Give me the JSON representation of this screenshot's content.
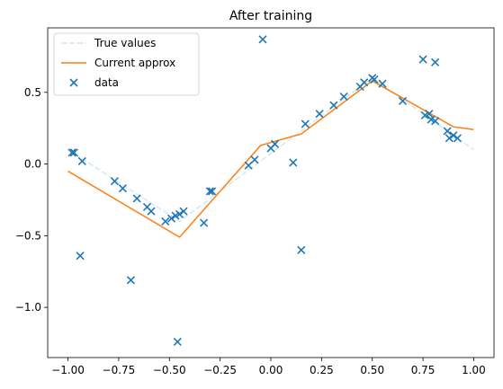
{
  "chart_data": {
    "type": "line",
    "title": "After training",
    "xlabel": "",
    "ylabel": "",
    "xlim": [
      -1.1,
      1.1
    ],
    "ylim": [
      -1.35,
      0.95
    ],
    "xticks": [
      -1.0,
      -0.75,
      -0.5,
      -0.25,
      0.0,
      0.25,
      0.5,
      0.75,
      1.0
    ],
    "xtick_labels": [
      "−1.00",
      "−0.75",
      "−0.50",
      "−0.25",
      "0.00",
      "0.25",
      "0.50",
      "0.75",
      "1.00"
    ],
    "yticks": [
      -1.0,
      -0.5,
      0.0,
      0.5
    ],
    "ytick_labels": [
      "−1.0",
      "−0.5",
      "0.0",
      "0.5"
    ],
    "grid": false,
    "legend": {
      "placement": "top-left",
      "entries": [
        "True values",
        "Current approx",
        "data"
      ]
    },
    "series": [
      {
        "name": "True values",
        "kind": "line",
        "style": "dashed",
        "color": "#add8e6",
        "points": [
          [
            -1.0,
            0.1
          ],
          [
            -0.45,
            -0.4
          ],
          [
            0.5,
            0.6
          ],
          [
            1.0,
            0.1
          ]
        ]
      },
      {
        "name": "Current approx",
        "kind": "line",
        "style": "solid",
        "color": "#ff7f0e",
        "points": [
          [
            -1.0,
            -0.05
          ],
          [
            -0.45,
            -0.51
          ],
          [
            -0.05,
            0.13
          ],
          [
            0.15,
            0.21
          ],
          [
            0.5,
            0.58
          ],
          [
            0.9,
            0.26
          ],
          [
            1.0,
            0.24
          ]
        ]
      },
      {
        "name": "data",
        "kind": "scatter",
        "marker": "x",
        "color": "#1f77b4",
        "points": [
          [
            -0.98,
            0.08
          ],
          [
            -0.97,
            0.08
          ],
          [
            -0.94,
            -0.64
          ],
          [
            -0.93,
            0.02
          ],
          [
            -0.77,
            -0.12
          ],
          [
            -0.73,
            -0.17
          ],
          [
            -0.69,
            -0.81
          ],
          [
            -0.66,
            -0.24
          ],
          [
            -0.61,
            -0.3
          ],
          [
            -0.59,
            -0.33
          ],
          [
            -0.52,
            -0.4
          ],
          [
            -0.49,
            -0.38
          ],
          [
            -0.47,
            -0.36
          ],
          [
            -0.46,
            -1.24
          ],
          [
            -0.45,
            -0.35
          ],
          [
            -0.43,
            -0.33
          ],
          [
            -0.33,
            -0.41
          ],
          [
            -0.3,
            -0.19
          ],
          [
            -0.29,
            -0.19
          ],
          [
            -0.11,
            -0.01
          ],
          [
            -0.08,
            0.03
          ],
          [
            -0.04,
            0.87
          ],
          [
            0.0,
            0.11
          ],
          [
            0.02,
            0.14
          ],
          [
            0.11,
            0.01
          ],
          [
            0.15,
            -0.6
          ],
          [
            0.17,
            0.28
          ],
          [
            0.24,
            0.35
          ],
          [
            0.31,
            0.41
          ],
          [
            0.36,
            0.47
          ],
          [
            0.44,
            0.54
          ],
          [
            0.46,
            0.57
          ],
          [
            0.5,
            0.6
          ],
          [
            0.51,
            0.59
          ],
          [
            0.55,
            0.56
          ],
          [
            0.65,
            0.44
          ],
          [
            0.75,
            0.73
          ],
          [
            0.76,
            0.34
          ],
          [
            0.78,
            0.35
          ],
          [
            0.79,
            0.31
          ],
          [
            0.81,
            0.71
          ],
          [
            0.81,
            0.3
          ],
          [
            0.87,
            0.23
          ],
          [
            0.88,
            0.18
          ],
          [
            0.9,
            0.2
          ],
          [
            0.92,
            0.18
          ]
        ]
      }
    ]
  }
}
